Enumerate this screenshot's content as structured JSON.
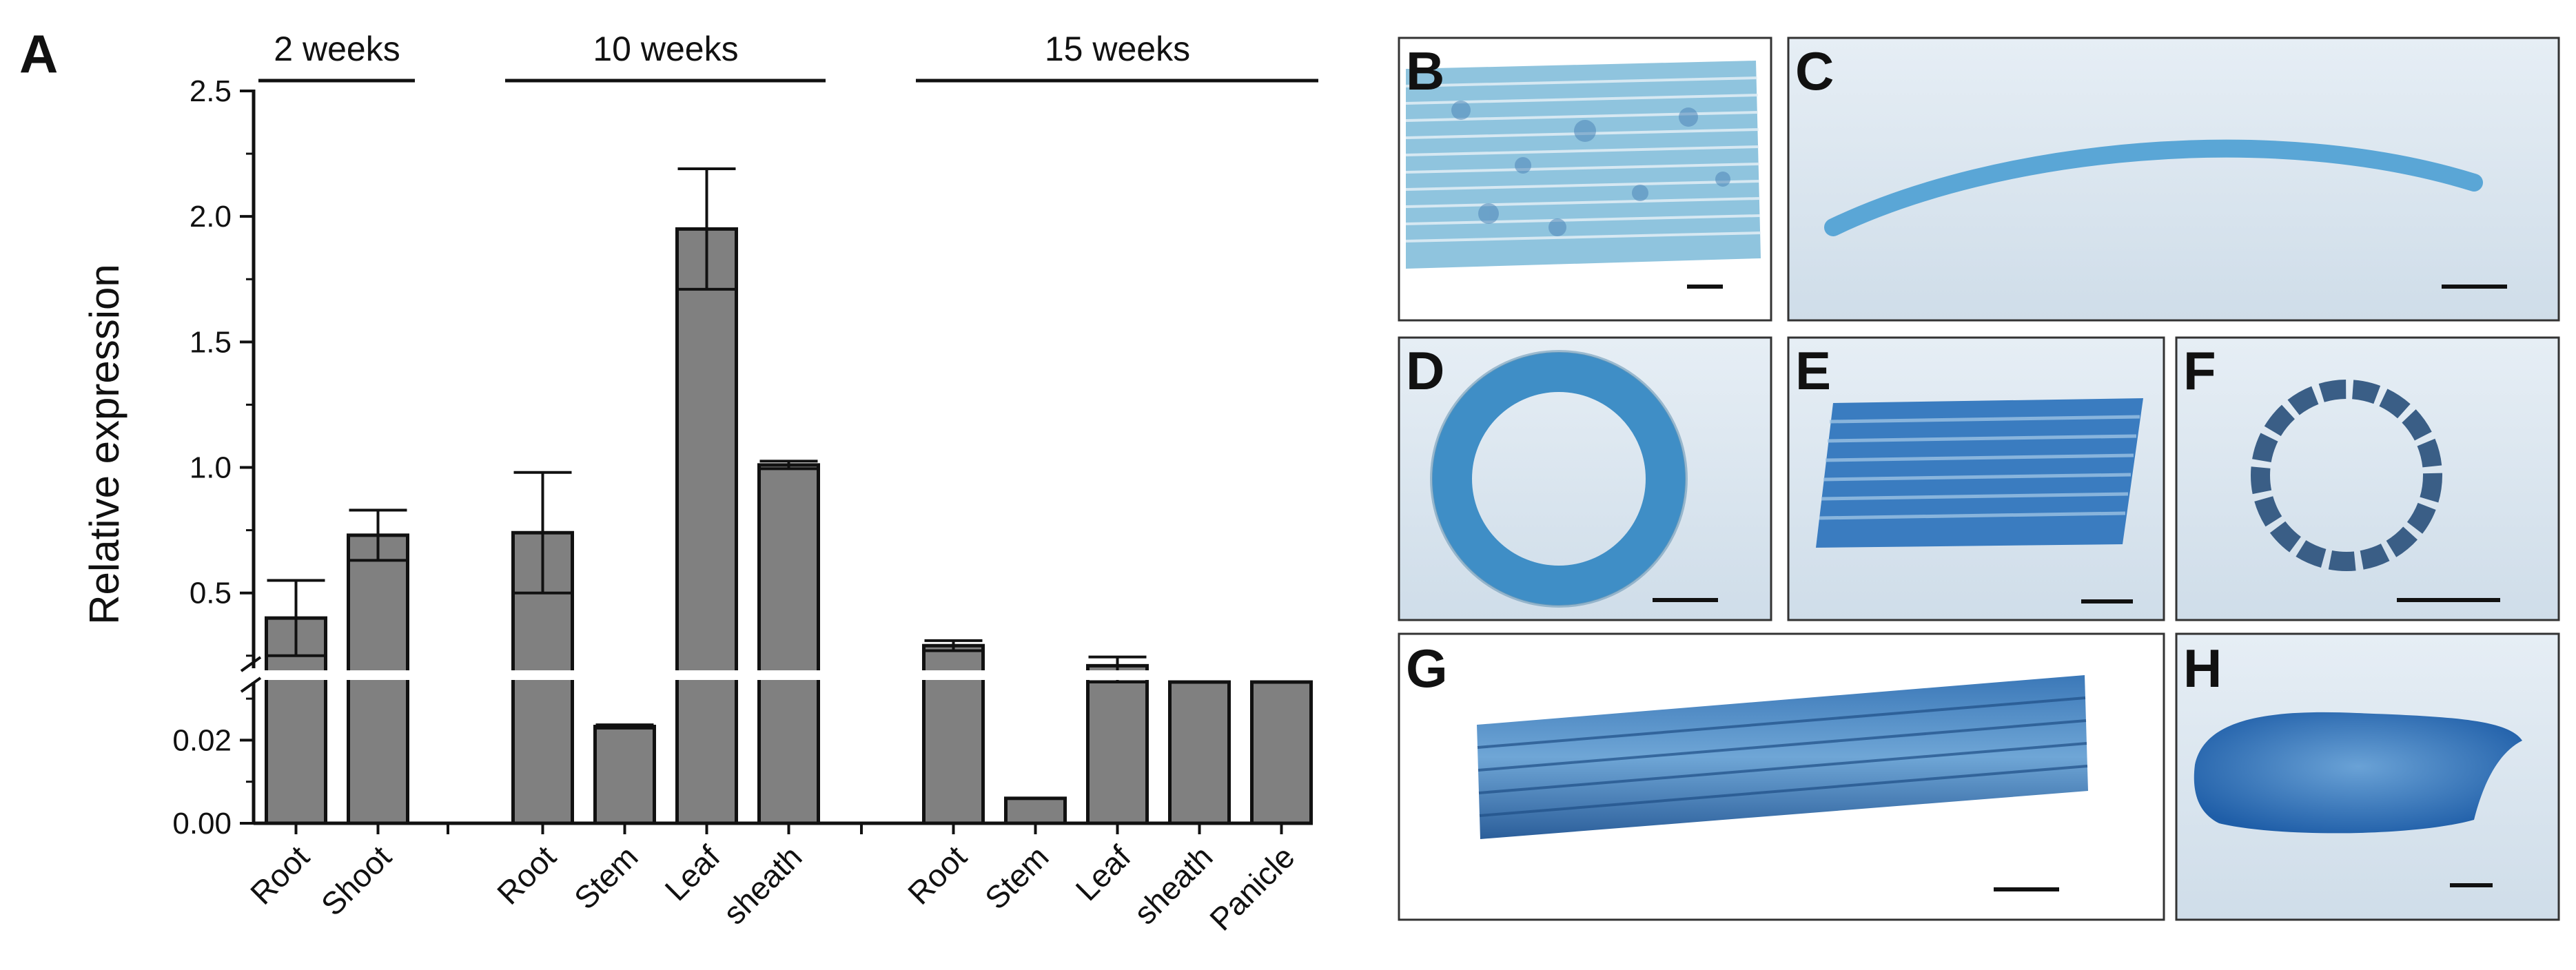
{
  "figure": {
    "panel_labels": [
      "A",
      "B",
      "C",
      "D",
      "E",
      "F",
      "G",
      "H"
    ]
  },
  "chart_data": {
    "type": "bar",
    "panel": "A",
    "title": "",
    "xlabel": "",
    "ylabel": "Relative expression",
    "y_axis_break": true,
    "upper_segment": {
      "ylim": [
        0.2,
        2.5
      ],
      "ticks": [
        "2.5",
        "2.0",
        "1.5",
        "1.0",
        "0.5"
      ]
    },
    "lower_segment": {
      "ylim": [
        0,
        0.034
      ],
      "ticks": [
        "0.02",
        "0.00"
      ]
    },
    "bar_color": "#808080",
    "groups": [
      {
        "name": "2 weeks",
        "categories": [
          "Root",
          "Shoot"
        ],
        "values": [
          0.4,
          0.73
        ],
        "errors": [
          0.15,
          0.1
        ]
      },
      {
        "name": "10 weeks",
        "categories": [
          "Root",
          "Stem",
          "Leaf",
          "sheath"
        ],
        "values": [
          0.74,
          0.0233,
          1.95,
          1.01
        ],
        "errors": [
          0.24,
          0.0004,
          0.24,
          0.015
        ]
      },
      {
        "name": "15 weeks",
        "categories": [
          "Root",
          "Stem",
          "Leaf",
          "sheath",
          "Panicle"
        ],
        "values": [
          0.29,
          0.006,
          0.21,
          0.135,
          0.18
        ],
        "errors": [
          0.02,
          0.0,
          0.035,
          0.0,
          0.008
        ]
      }
    ]
  },
  "photos": [
    {
      "label": "B",
      "colors": [
        "#8fc4de",
        "#5e9ac2"
      ]
    },
    {
      "label": "C",
      "colors": [
        "#dfe9f2",
        "#5aa6d6"
      ]
    },
    {
      "label": "D",
      "colors": [
        "#dbe8f2",
        "#3f8ec6"
      ]
    },
    {
      "label": "E",
      "colors": [
        "#d4e2ee",
        "#3a7cc0"
      ]
    },
    {
      "label": "F",
      "colors": [
        "#e3edf5",
        "#3a5e86"
      ]
    },
    {
      "label": "G",
      "colors": [
        "#dbe8f2",
        "#2f6fb5"
      ]
    },
    {
      "label": "H",
      "colors": [
        "#dfeaf3",
        "#2f74bf"
      ]
    }
  ]
}
